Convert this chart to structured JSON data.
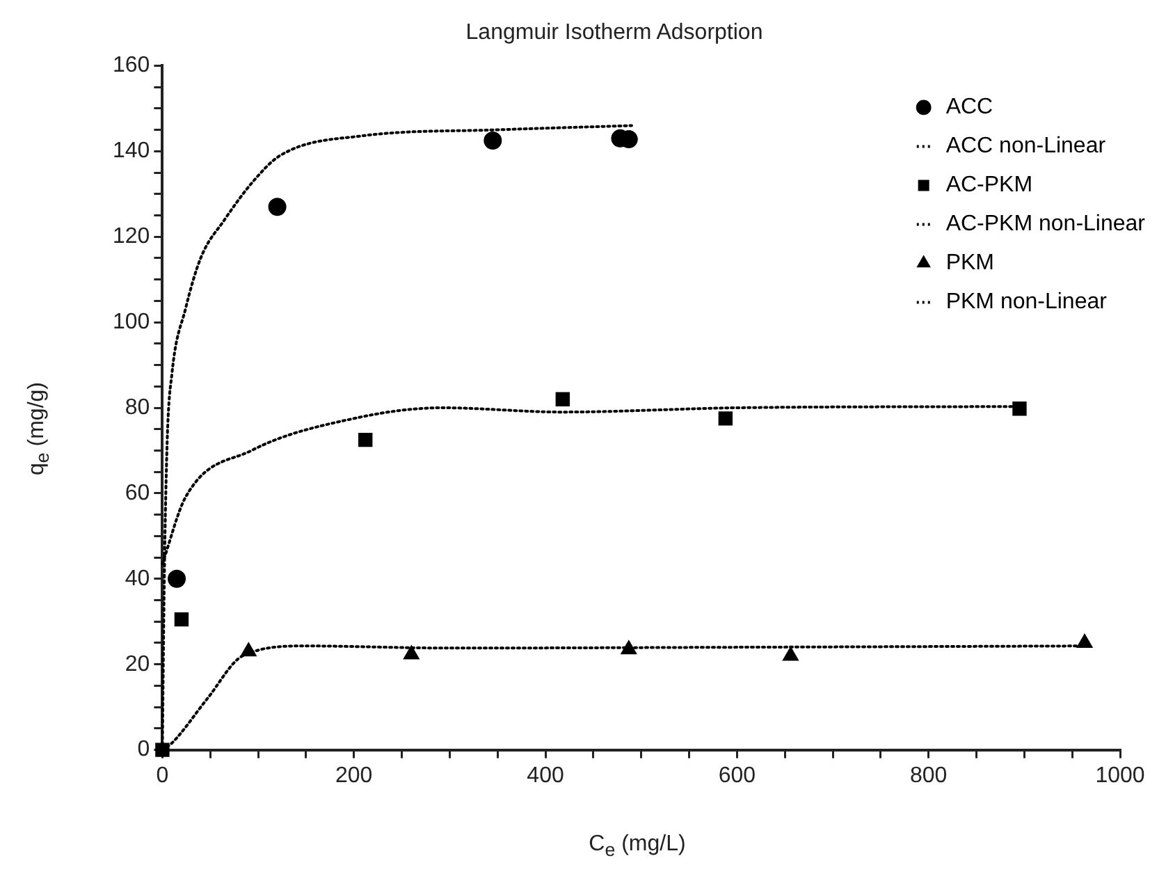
{
  "chart_data": {
    "type": "scatter",
    "title": "Langmuir Isotherm Adsorption",
    "xlabel": "C$_{e}$ (mg/L)",
    "ylabel": "q$_{e}$ (mg/g)",
    "xlim": [
      0,
      1000
    ],
    "ylim": [
      0,
      160
    ],
    "xticks": [
      0,
      {
        "value": 50,
        "label": null
      },
      200,
      {
        "value": 100,
        "label": null
      },
      {
        "value": 150,
        "label": null
      },
      {
        "value": 250,
        "label": null
      },
      {
        "value": 300,
        "label": null
      },
      {
        "value": 350,
        "label": null
      },
      400,
      {
        "value": 450,
        "label": null
      },
      {
        "value": 500,
        "label": null
      },
      {
        "value": 550,
        "label": null
      },
      600,
      {
        "value": 650,
        "label": null
      },
      {
        "value": 700,
        "label": null
      },
      {
        "value": 750,
        "label": null
      },
      800,
      {
        "value": 850,
        "label": null
      },
      {
        "value": 900,
        "label": null
      },
      {
        "value": 950,
        "label": null
      },
      1000
    ],
    "yticks": [
      0,
      {
        "value": 5,
        "label": null
      },
      {
        "value": 10,
        "label": null
      },
      {
        "value": 15,
        "label": null
      },
      20,
      {
        "value": 25,
        "label": null
      },
      {
        "value": 30,
        "label": null
      },
      {
        "value": 35,
        "label": null
      },
      40,
      {
        "value": 45,
        "label": null
      },
      {
        "value": 50,
        "label": null
      },
      {
        "value": 55,
        "label": null
      },
      60,
      {
        "value": 65,
        "label": null
      },
      {
        "value": 70,
        "label": null
      },
      {
        "value": 75,
        "label": null
      },
      80,
      {
        "value": 85,
        "label": null
      },
      {
        "value": 90,
        "label": null
      },
      {
        "value": 95,
        "label": null
      },
      100,
      {
        "value": 105,
        "label": null
      },
      {
        "value": 110,
        "label": null
      },
      {
        "value": 115,
        "label": null
      },
      120,
      {
        "value": 125,
        "label": null
      },
      {
        "value": 130,
        "label": null
      },
      {
        "value": 135,
        "label": null
      },
      140,
      {
        "value": 145,
        "label": null
      },
      {
        "value": 150,
        "label": null
      },
      {
        "value": 155,
        "label": null
      },
      160
    ],
    "grid": false,
    "legend": "top right",
    "series": [
      {
        "name": "ACC",
        "type": "scatter",
        "marker": "circle",
        "color": "#000000",
        "x": [
          15,
          120,
          345,
          478,
          487
        ],
        "values": [
          40,
          127,
          142.5,
          143,
          142.8
        ]
      },
      {
        "name": "ACC non-Linear",
        "type": "line",
        "marker": "none",
        "line_style": "dotted",
        "color": "#000000",
        "x": [
          0,
          2,
          5,
          10,
          24,
          40,
          65,
          95,
          123,
          209,
          348,
          490
        ],
        "values": [
          0,
          40,
          72,
          88,
          103,
          115,
          124,
          133,
          139,
          143.6,
          145,
          146
        ]
      },
      {
        "name": "AC-PKM",
        "type": "scatter",
        "marker": "square",
        "color": "#000000",
        "x": [
          0,
          20,
          212,
          418,
          588,
          895
        ],
        "values": [
          0,
          30.5,
          72.5,
          82,
          77.5,
          79.8
        ]
      },
      {
        "name": "AC-PKM non-Linear",
        "type": "line",
        "marker": "none",
        "line_style": "dotted",
        "color": "#000000",
        "x": [
          0,
          24,
          93,
          200,
          292,
          418,
          600,
          895
        ],
        "values": [
          43.5,
          59,
          70,
          77.5,
          80,
          79,
          80,
          80.3
        ]
      },
      {
        "name": "PKM",
        "type": "scatter",
        "marker": "triangle",
        "color": "#000000",
        "x": [
          90,
          260,
          487,
          656,
          963
        ],
        "values": [
          23,
          22.3,
          23.5,
          22,
          25
        ]
      },
      {
        "name": "PKM non-Linear",
        "type": "line",
        "marker": "none",
        "line_style": "dotted",
        "color": "#000000",
        "x": [
          0,
          10,
          47,
          84,
          149,
          300,
          600,
          963
        ],
        "values": [
          0,
          1.6,
          12,
          22,
          24.3,
          23.8,
          24,
          24.3
        ]
      }
    ]
  }
}
